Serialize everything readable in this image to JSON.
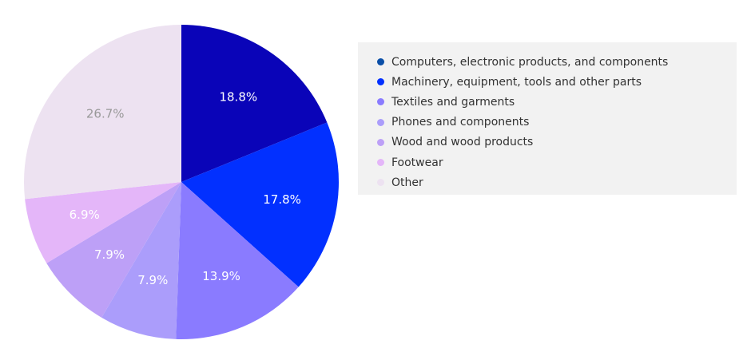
{
  "chart_data": {
    "type": "pie",
    "title": "",
    "legend_position": "right",
    "categories": [
      "Computers, electronic products, and components",
      "Machinery, equipment, tools and other parts",
      "Textiles and garments",
      "Phones and components",
      "Wood and wood products",
      "Footwear",
      "Other"
    ],
    "values": [
      18.8,
      17.8,
      13.9,
      7.9,
      7.9,
      6.9,
      26.7
    ],
    "value_labels": [
      "18.8%",
      "17.8%",
      "13.9%",
      "7.9%",
      "7.9%",
      "6.9%",
      "26.7%"
    ],
    "colors": [
      "#0a04b8",
      "#0230ff",
      "#8a7bff",
      "#ab9dfb",
      "#bda0f7",
      "#e4b6f9",
      "#ede2f1"
    ],
    "legend_colors": [
      "#0b4fa8",
      "#0230ff",
      "#8a7bff",
      "#ab9dfb",
      "#bda0f7",
      "#e4b6f9",
      "#ede2f1"
    ],
    "label_colors": [
      "#ffffff",
      "#ffffff",
      "#ffffff",
      "#ffffff",
      "#ffffff",
      "#ffffff",
      "#999999"
    ]
  }
}
